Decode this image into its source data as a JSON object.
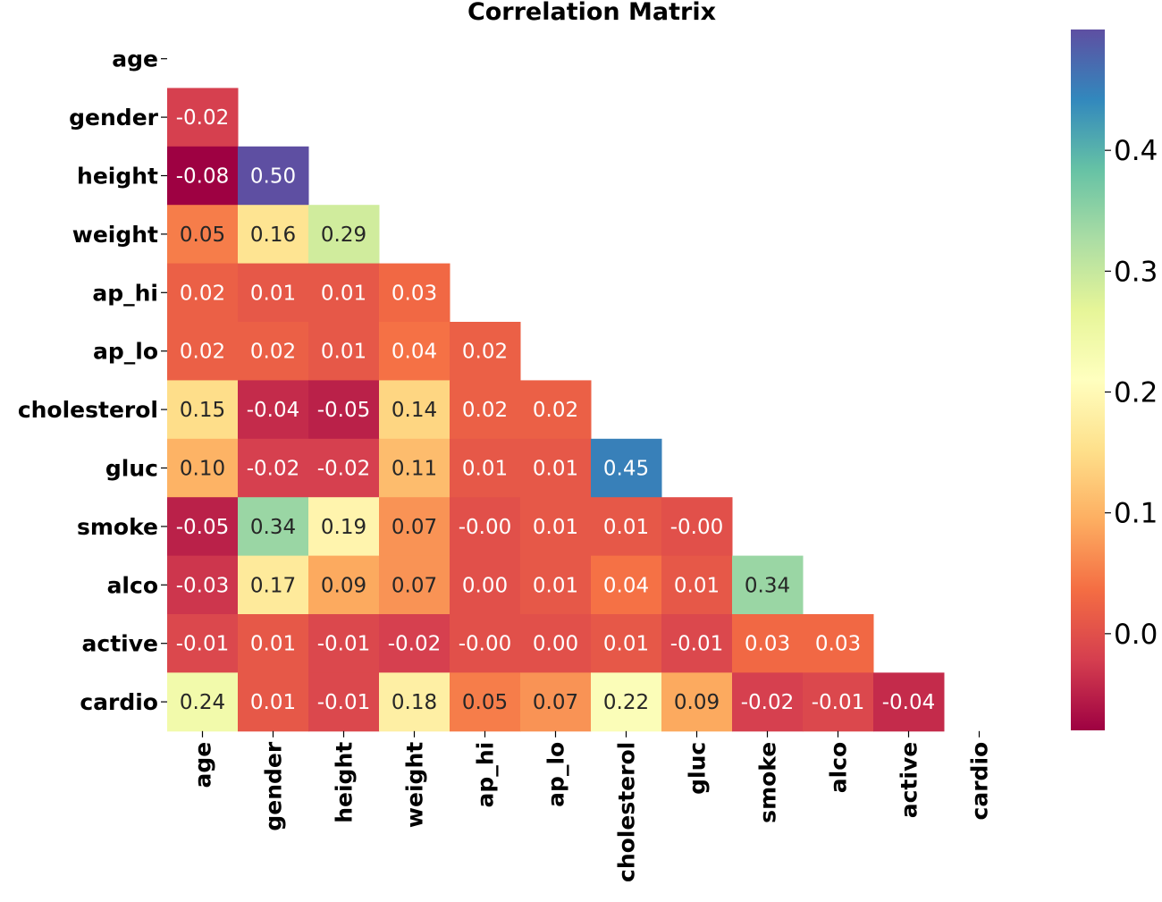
{
  "chart_data": {
    "type": "heatmap",
    "title": "Correlation Matrix",
    "xlabel": "",
    "ylabel": "",
    "labels": [
      "age",
      "gender",
      "height",
      "weight",
      "ap_hi",
      "ap_lo",
      "cholesterol",
      "gluc",
      "smoke",
      "alco",
      "active",
      "cardio"
    ],
    "mask": "upper-triangle-including-diagonal",
    "colormap": "Spectral",
    "vmin": -0.08,
    "vmax": 0.5,
    "colorbar_ticks": [
      0.0,
      0.1,
      0.2,
      0.3,
      0.4
    ],
    "colorbar_tick_labels": [
      "0.0",
      "0.1",
      "0.2",
      "0.3",
      "0.4"
    ],
    "cells": [
      [],
      [
        -0.02
      ],
      [
        -0.08,
        0.5
      ],
      [
        0.05,
        0.16,
        0.29
      ],
      [
        0.02,
        0.01,
        0.01,
        0.03
      ],
      [
        0.02,
        0.02,
        0.01,
        0.04,
        0.02
      ],
      [
        0.15,
        -0.04,
        -0.05,
        0.14,
        0.02,
        0.02
      ],
      [
        0.1,
        -0.02,
        -0.02,
        0.11,
        0.01,
        0.01,
        0.45
      ],
      [
        -0.05,
        0.34,
        0.19,
        0.07,
        -0.0,
        0.01,
        0.01,
        -0.0
      ],
      [
        -0.03,
        0.17,
        0.09,
        0.07,
        0.0,
        0.01,
        0.04,
        0.01,
        0.34
      ],
      [
        -0.01,
        0.01,
        -0.01,
        -0.02,
        -0.0,
        0.0,
        0.01,
        -0.01,
        0.03,
        0.03
      ],
      [
        0.24,
        0.01,
        -0.01,
        0.18,
        0.05,
        0.07,
        0.22,
        0.09,
        -0.02,
        -0.01,
        -0.04
      ]
    ],
    "cell_text": [
      [],
      [
        "-0.02"
      ],
      [
        "-0.08",
        "0.50"
      ],
      [
        "0.05",
        "0.16",
        "0.29"
      ],
      [
        "0.02",
        "0.01",
        "0.01",
        "0.03"
      ],
      [
        "0.02",
        "0.02",
        "0.01",
        "0.04",
        "0.02"
      ],
      [
        "0.15",
        "-0.04",
        "-0.05",
        "0.14",
        "0.02",
        "0.02"
      ],
      [
        "0.10",
        "-0.02",
        "-0.02",
        "0.11",
        "0.01",
        "0.01",
        "0.45"
      ],
      [
        "-0.05",
        "0.34",
        "0.19",
        "0.07",
        "-0.00",
        "0.01",
        "0.01",
        "-0.00"
      ],
      [
        "-0.03",
        "0.17",
        "0.09",
        "0.07",
        "0.00",
        "0.01",
        "0.04",
        "0.01",
        "0.34"
      ],
      [
        "-0.01",
        "0.01",
        "-0.01",
        "-0.02",
        "-0.00",
        "0.00",
        "0.01",
        "-0.01",
        "0.03",
        "0.03"
      ],
      [
        "0.24",
        "0.01",
        "-0.01",
        "0.18",
        "0.05",
        "0.07",
        "0.22",
        "0.09",
        "-0.02",
        "-0.01",
        "-0.04"
      ]
    ]
  }
}
